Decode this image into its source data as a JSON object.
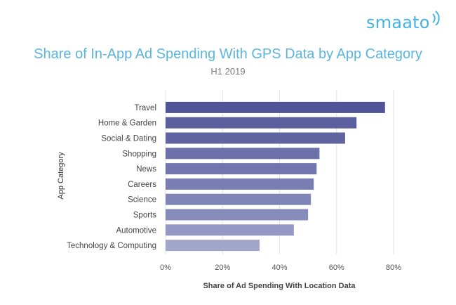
{
  "brand": {
    "logo_text": "smaato",
    "accent": "#45b3e6"
  },
  "chart_data": {
    "type": "bar",
    "orientation": "horizontal",
    "title": "Share of In-App Ad Spending With GPS Data by App Category",
    "subtitle": "H1 2019",
    "ylabel": "App Category",
    "xlabel": "Share of Ad Spending With Location Data",
    "categories": [
      "Travel",
      "Home & Garden",
      "Social & Dating",
      "Shopping",
      "News",
      "Careers",
      "Science",
      "Sports",
      "Automotive",
      "Technology & Computing"
    ],
    "values": [
      77,
      67,
      63,
      54,
      53,
      52,
      51,
      50,
      45,
      33
    ],
    "xlim": [
      0,
      80
    ],
    "xticks": [
      0,
      20,
      40,
      60,
      80
    ],
    "xtick_labels": [
      "0%",
      "20%",
      "40%",
      "60%",
      "80%"
    ],
    "grid": true,
    "colors": [
      "#4f5597",
      "#5a5f9e",
      "#60659f",
      "#6c71aa",
      "#7075ad",
      "#787db2",
      "#8085b7",
      "#878bba",
      "#9598c2",
      "#a3a6cb"
    ],
    "grid_color": "#e3e3e3"
  }
}
